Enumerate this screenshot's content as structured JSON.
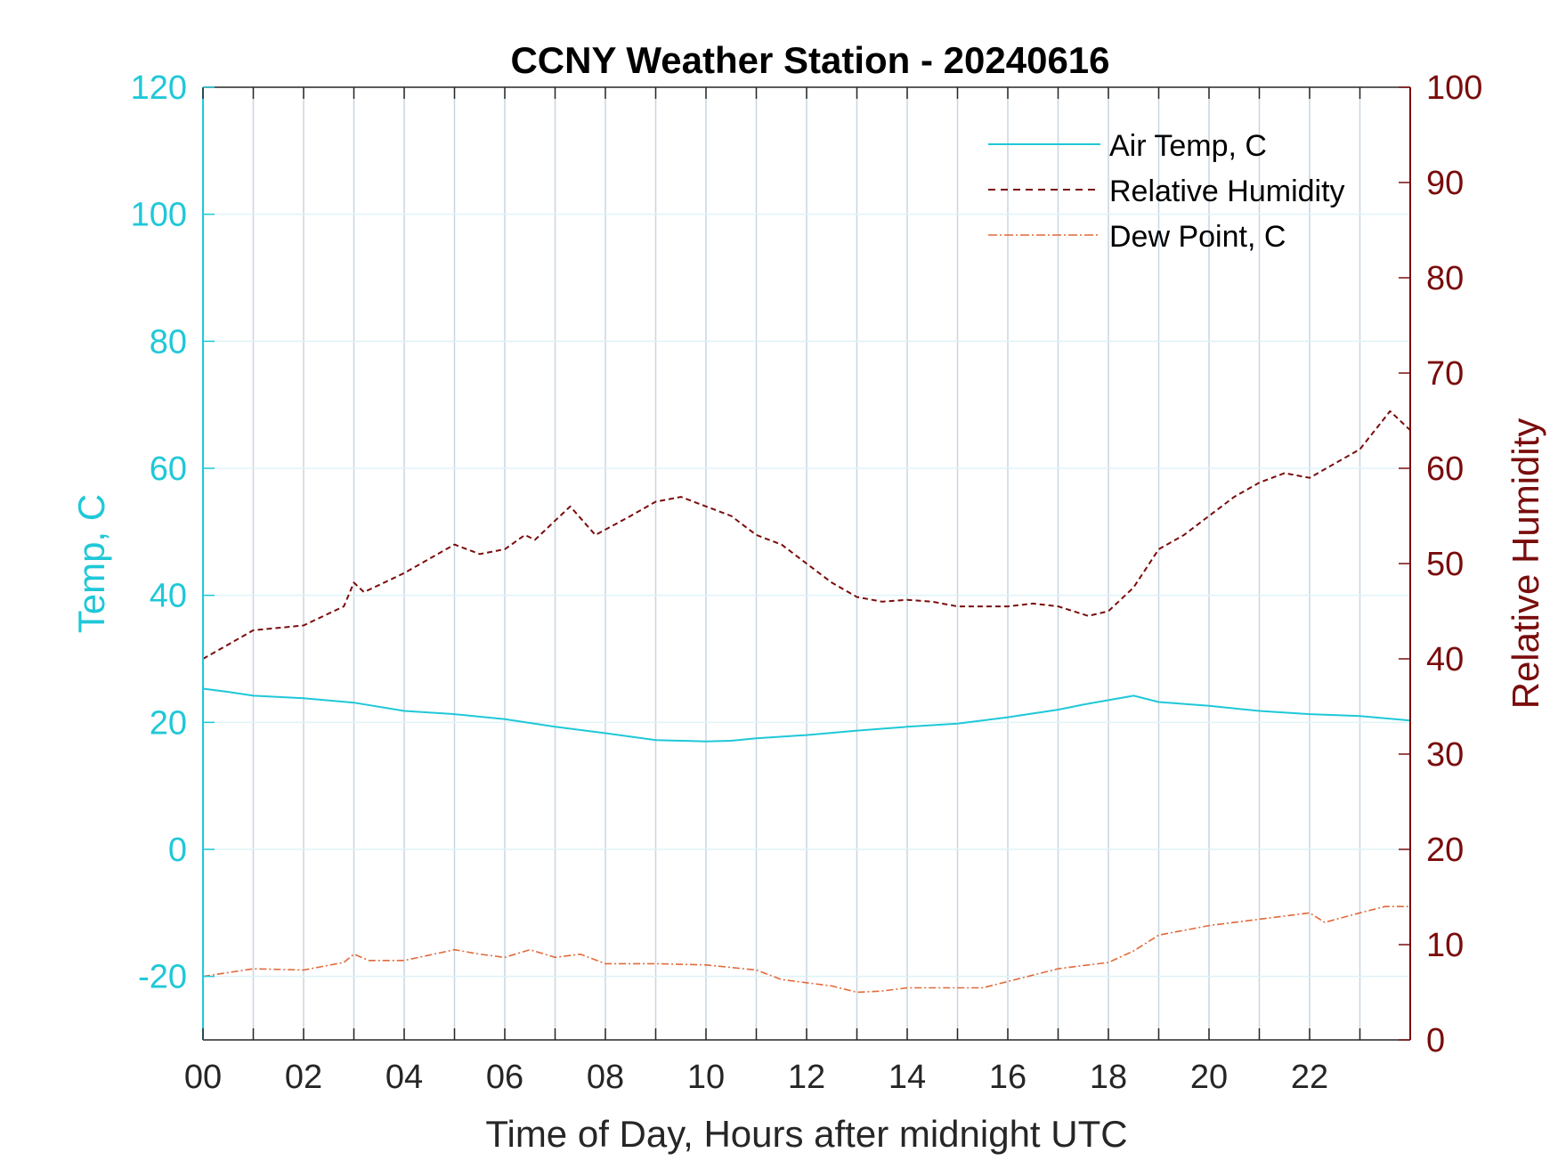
{
  "chart_data": {
    "type": "line",
    "title": "CCNY Weather Station - 20240616",
    "xlabel": "Time of Day, Hours after midnight UTC",
    "ylabel_left": "Temp, C",
    "ylabel_right": "Relative Humidity",
    "xlim": [
      0,
      24
    ],
    "ylim_left": [
      -30,
      120
    ],
    "ylim_right": [
      0,
      100
    ],
    "x_ticks": [
      0,
      1,
      2,
      3,
      4,
      5,
      6,
      7,
      8,
      9,
      10,
      11,
      12,
      13,
      14,
      15,
      16,
      17,
      18,
      19,
      20,
      21,
      22,
      23
    ],
    "x_tick_labels": [
      "00",
      "02",
      "04",
      "06",
      "08",
      "10",
      "12",
      "14",
      "16",
      "18",
      "20",
      "22"
    ],
    "x_tick_label_values": [
      0,
      2,
      4,
      6,
      8,
      10,
      12,
      14,
      16,
      18,
      20,
      22
    ],
    "y_left_ticks": [
      -20,
      0,
      20,
      40,
      60,
      80,
      100,
      120
    ],
    "y_left_tick_labels": [
      "-20",
      "0",
      "20",
      "40",
      "60",
      "80",
      "100",
      "120"
    ],
    "y_right_ticks": [
      0,
      10,
      20,
      30,
      40,
      50,
      60,
      70,
      80,
      90,
      100
    ],
    "y_right_tick_labels": [
      "0",
      "10",
      "20",
      "30",
      "40",
      "50",
      "60",
      "70",
      "80",
      "90",
      "100"
    ],
    "grid": true,
    "legend_position": "top-right",
    "colors": {
      "left_axis": "#1fc8d8",
      "right_axis": "#7a0c0c",
      "air_temp": "#1fc8d8",
      "humidity": "#7a0c0c",
      "dew_point": "#e2693a",
      "grid": "#c9d6e0"
    },
    "series": [
      {
        "name": "Air Temp, C",
        "axis": "left",
        "style": "solid",
        "x": [
          0,
          0.5,
          1,
          2,
          3,
          4,
          5,
          6,
          7,
          8,
          9,
          10,
          10.5,
          11,
          12,
          13,
          14,
          15,
          16,
          17,
          17.5,
          18,
          18.5,
          19,
          20,
          21,
          22,
          23,
          24
        ],
        "y": [
          25.3,
          24.8,
          24.2,
          23.8,
          23.1,
          21.8,
          21.3,
          20.5,
          19.3,
          18.3,
          17.2,
          17.0,
          17.1,
          17.5,
          18.0,
          18.7,
          19.3,
          19.8,
          20.8,
          22.0,
          22.8,
          23.5,
          24.2,
          23.2,
          22.6,
          21.8,
          21.3,
          21.0,
          20.3
        ]
      },
      {
        "name": "Relative Humidity",
        "axis": "right",
        "style": "dashed",
        "x": [
          0,
          0.5,
          1,
          2,
          2.8,
          3.0,
          3.2,
          4,
          4.5,
          5,
          5.5,
          6,
          6.4,
          6.6,
          7,
          7.3,
          7.8,
          8.5,
          9,
          9.5,
          10,
          10.5,
          11,
          11.5,
          12,
          12.5,
          13,
          13.5,
          14,
          14.5,
          15,
          15.5,
          16,
          16.5,
          17,
          17.6,
          18,
          18.5,
          19,
          19.5,
          20,
          20.5,
          21,
          21.5,
          22,
          22.5,
          23,
          23.6,
          24
        ],
        "y": [
          40,
          41.5,
          43,
          43.5,
          45.5,
          48,
          47,
          49,
          50.5,
          52,
          51,
          51.5,
          53,
          52.5,
          54.5,
          56,
          53,
          55,
          56.5,
          57,
          56,
          55,
          53,
          52,
          50,
          48,
          46.5,
          46,
          46.2,
          46,
          45.5,
          45.5,
          45.5,
          45.8,
          45.5,
          44.5,
          45,
          47.5,
          51.5,
          53,
          55,
          57,
          58.5,
          59.5,
          59,
          60.5,
          62,
          66,
          64
        ]
      },
      {
        "name": "Dew Point, C",
        "axis": "left",
        "style": "dashdot",
        "x": [
          0,
          1,
          2,
          2.8,
          3.0,
          3.3,
          4,
          5,
          5.5,
          6,
          6.5,
          7,
          7.5,
          8,
          9,
          10,
          11,
          11.5,
          12,
          12.5,
          13,
          13.5,
          14,
          15,
          15.5,
          16,
          17,
          18,
          18.5,
          19,
          20,
          21,
          22,
          22.3,
          23,
          23.5,
          24
        ],
        "y": [
          -20,
          -18.8,
          -19,
          -17.8,
          -16.5,
          -17.5,
          -17.5,
          -15.8,
          -16.5,
          -17,
          -15.8,
          -17,
          -16.5,
          -18,
          -18,
          -18.2,
          -19,
          -20.5,
          -21,
          -21.5,
          -22.5,
          -22.3,
          -21.8,
          -21.8,
          -21.8,
          -20.8,
          -18.8,
          -17.8,
          -16,
          -13.5,
          -12,
          -11,
          -10,
          -11.5,
          -10,
          -9,
          -9
        ]
      }
    ]
  }
}
